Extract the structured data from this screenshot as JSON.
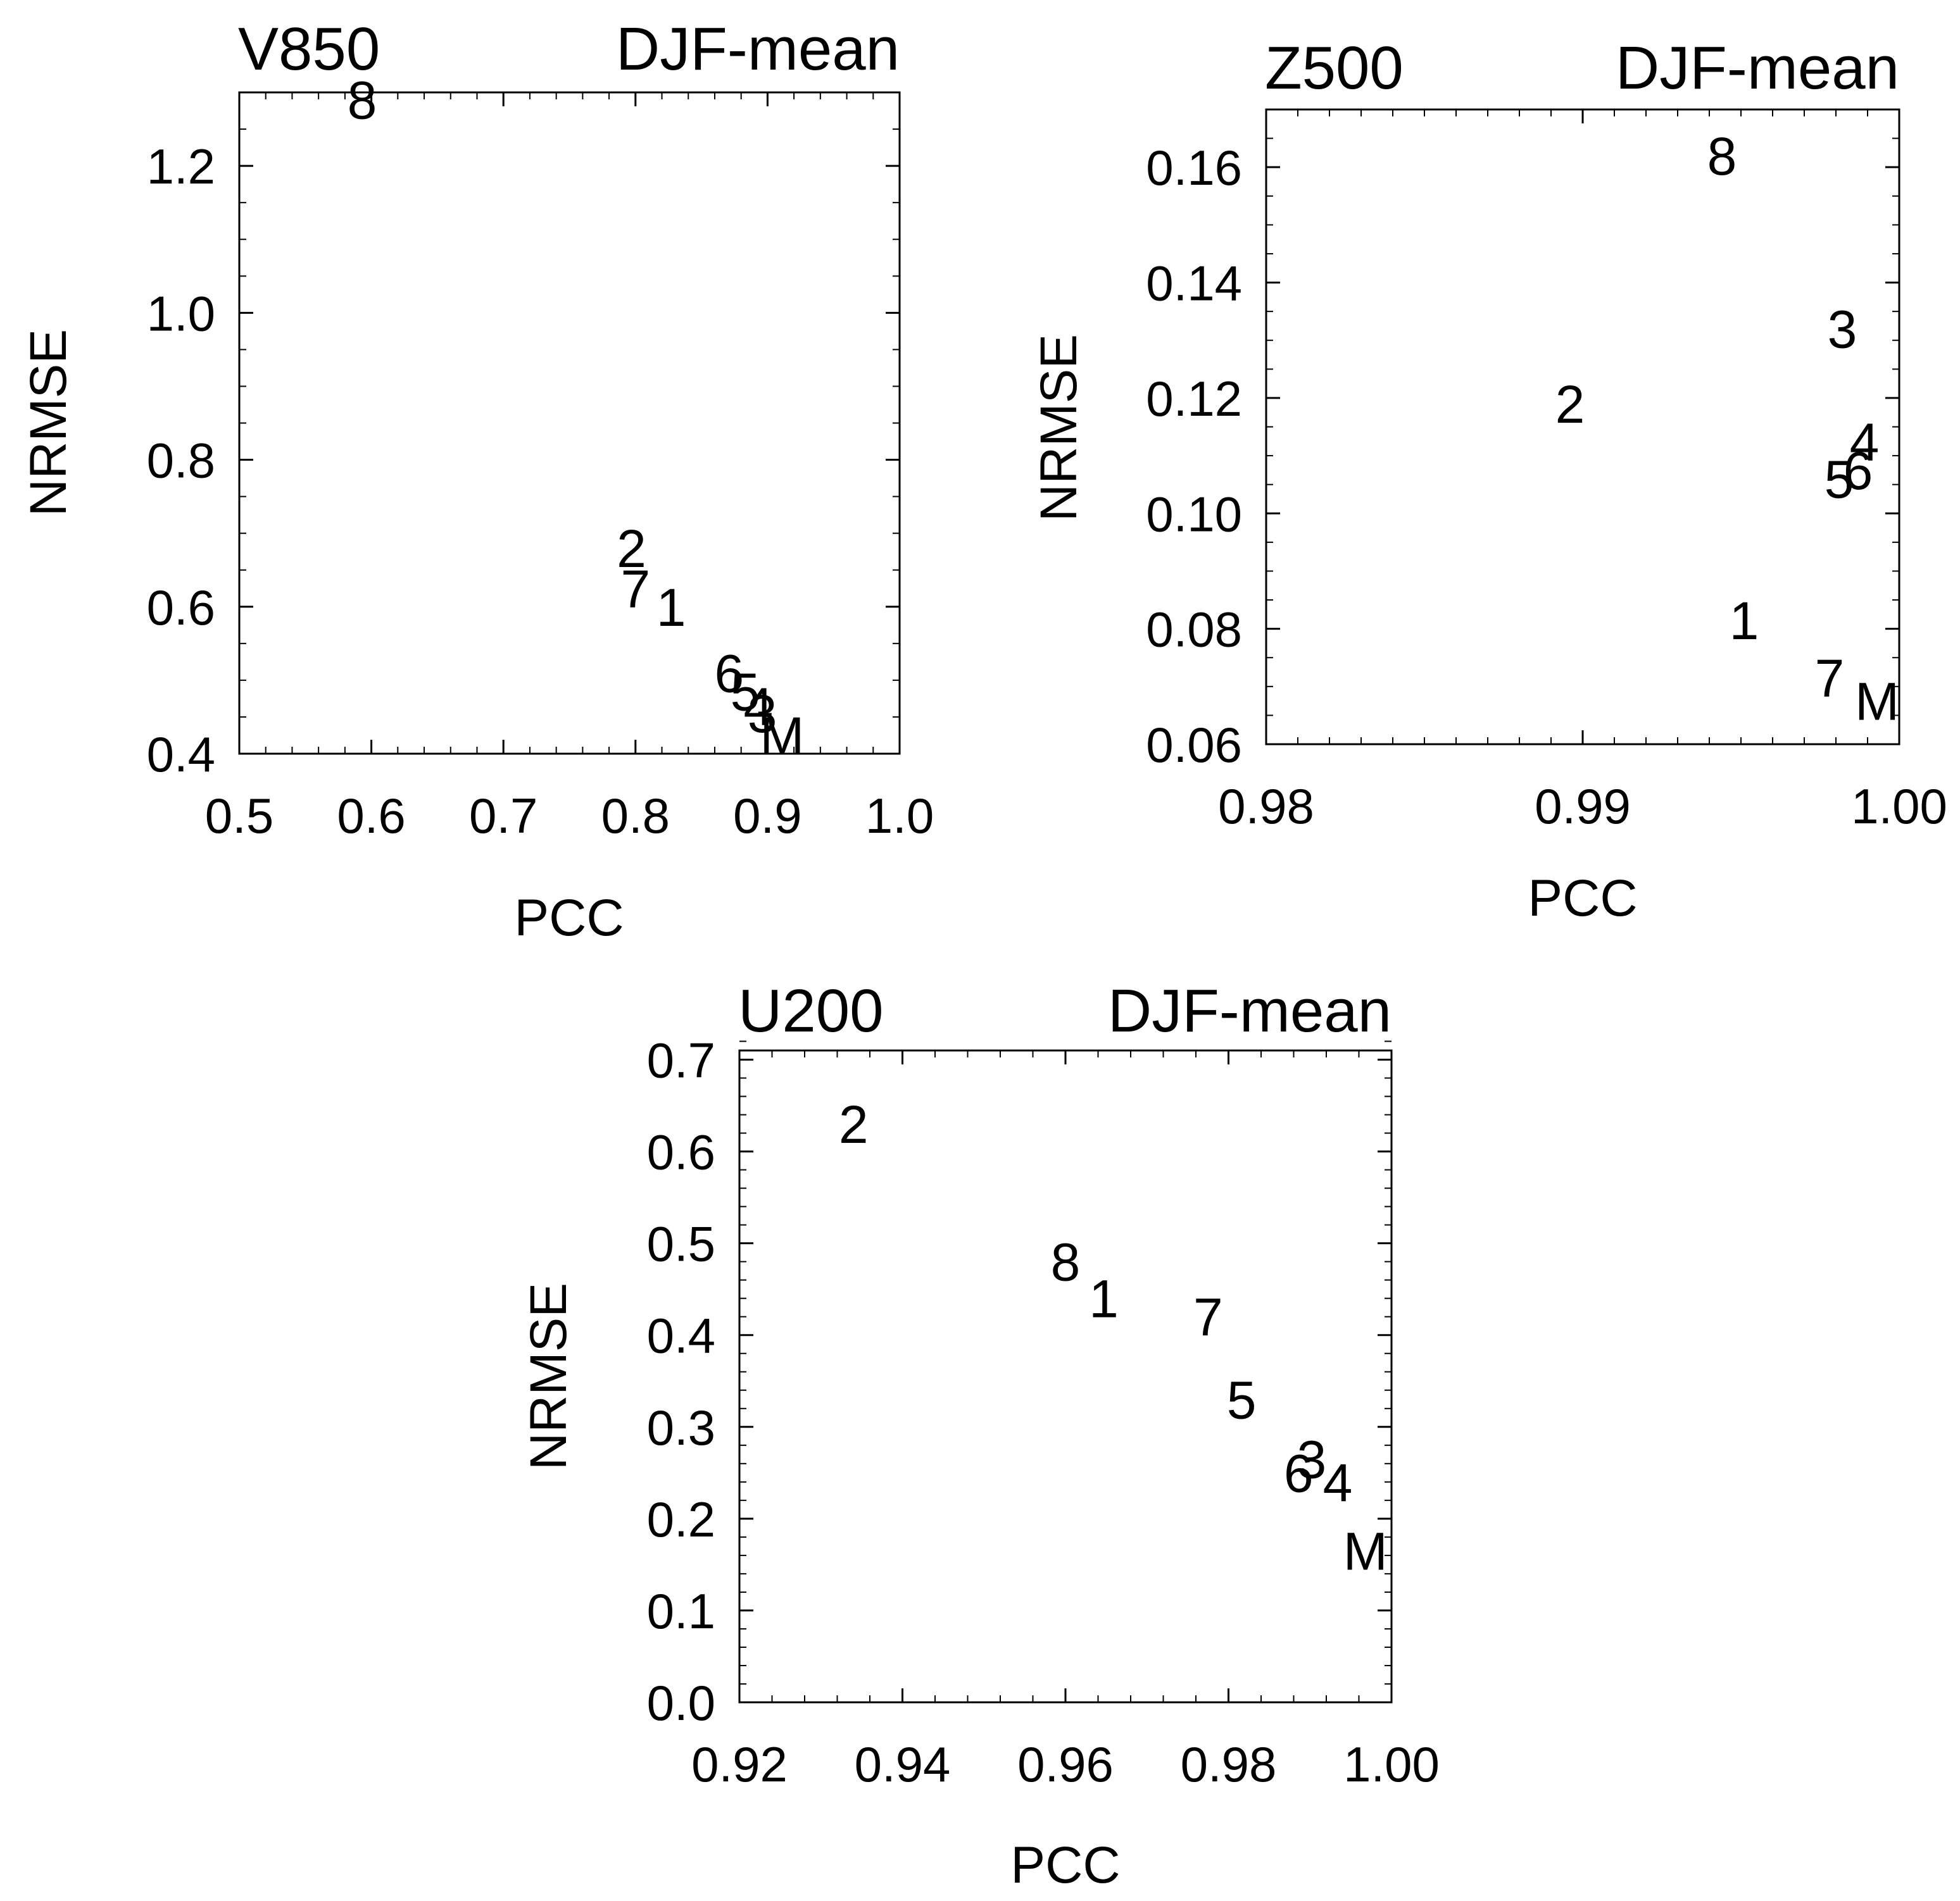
{
  "chart_data": [
    {
      "type": "scatter",
      "title_left": "V850",
      "title_right": "DJF-mean",
      "xlabel": "PCC",
      "ylabel": "NRMSE",
      "xlim": [
        0.5,
        1.0
      ],
      "ylim": [
        0.4,
        1.3
      ],
      "xticks": [
        0.5,
        0.6,
        0.7,
        0.8,
        0.9,
        1.0
      ],
      "xtick_labels": [
        "0.5",
        "0.6",
        "0.7",
        "0.8",
        "0.9",
        "1.0"
      ],
      "yticks": [
        0.4,
        0.6,
        0.8,
        1.0,
        1.2
      ],
      "ytick_labels": [
        "0.4",
        "0.6",
        "0.8",
        "1.0",
        "1.2"
      ],
      "x_minor_step": 0.02,
      "y_minor_step": 0.05,
      "grid": false,
      "points": [
        {
          "label": "8",
          "x": 0.593,
          "y": 1.29
        },
        {
          "label": "2",
          "x": 0.797,
          "y": 0.68
        },
        {
          "label": "7",
          "x": 0.8,
          "y": 0.625
        },
        {
          "label": "1",
          "x": 0.827,
          "y": 0.6
        },
        {
          "label": "6",
          "x": 0.871,
          "y": 0.51
        },
        {
          "label": "5",
          "x": 0.883,
          "y": 0.485
        },
        {
          "label": "4",
          "x": 0.893,
          "y": 0.465
        },
        {
          "label": "3",
          "x": 0.896,
          "y": 0.455
        },
        {
          "label": "M",
          "x": 0.911,
          "y": 0.425
        }
      ]
    },
    {
      "type": "scatter",
      "title_left": "Z500",
      "title_right": "DJF-mean",
      "xlabel": "PCC",
      "ylabel": "NRMSE",
      "xlim": [
        0.98,
        1.0
      ],
      "ylim": [
        0.06,
        0.17
      ],
      "xticks": [
        0.98,
        0.99,
        1.0
      ],
      "xtick_labels": [
        "0.98",
        "0.99",
        "1.00"
      ],
      "yticks": [
        0.06,
        0.08,
        0.1,
        0.12,
        0.14,
        0.16
      ],
      "ytick_labels": [
        "0.06",
        "0.08",
        "0.10",
        "0.12",
        "0.14",
        "0.16"
      ],
      "x_minor_step": 0.001,
      "y_minor_step": 0.005,
      "grid": false,
      "points": [
        {
          "label": "8",
          "x": 0.9944,
          "y": 0.162
        },
        {
          "label": "3",
          "x": 0.9982,
          "y": 0.132
        },
        {
          "label": "2",
          "x": 0.9896,
          "y": 0.119
        },
        {
          "label": "4",
          "x": 0.9989,
          "y": 0.1125
        },
        {
          "label": "6",
          "x": 0.9987,
          "y": 0.1075
        },
        {
          "label": "5",
          "x": 0.9981,
          "y": 0.106
        },
        {
          "label": "1",
          "x": 0.9951,
          "y": 0.0815
        },
        {
          "label": "7",
          "x": 0.9978,
          "y": 0.0715
        },
        {
          "label": "M",
          "x": 0.9993,
          "y": 0.0675
        }
      ]
    },
    {
      "type": "scatter",
      "title_left": "U200",
      "title_right": "DJF-mean",
      "xlabel": "PCC",
      "ylabel": "NRMSE",
      "xlim": [
        0.92,
        1.0
      ],
      "ylim": [
        0.0,
        0.71
      ],
      "xticks": [
        0.92,
        0.94,
        0.96,
        0.98,
        1.0
      ],
      "xtick_labels": [
        "0.92",
        "0.94",
        "0.96",
        "0.98",
        "1.00"
      ],
      "yticks": [
        0.0,
        0.1,
        0.2,
        0.3,
        0.4,
        0.5,
        0.6,
        0.7
      ],
      "ytick_labels": [
        "0.0",
        "0.1",
        "0.2",
        "0.3",
        "0.4",
        "0.5",
        "0.6",
        "0.7"
      ],
      "x_minor_step": 0.004,
      "y_minor_step": 0.02,
      "grid": false,
      "points": [
        {
          "label": "2",
          "x": 0.934,
          "y": 0.63
        },
        {
          "label": "8",
          "x": 0.96,
          "y": 0.48
        },
        {
          "label": "1",
          "x": 0.9647,
          "y": 0.44
        },
        {
          "label": "7",
          "x": 0.9775,
          "y": 0.42
        },
        {
          "label": "5",
          "x": 0.9816,
          "y": 0.33
        },
        {
          "label": "3",
          "x": 0.9902,
          "y": 0.265
        },
        {
          "label": "6",
          "x": 0.9886,
          "y": 0.25
        },
        {
          "label": "4",
          "x": 0.9934,
          "y": 0.24
        },
        {
          "label": "M",
          "x": 0.9968,
          "y": 0.165
        }
      ]
    }
  ]
}
